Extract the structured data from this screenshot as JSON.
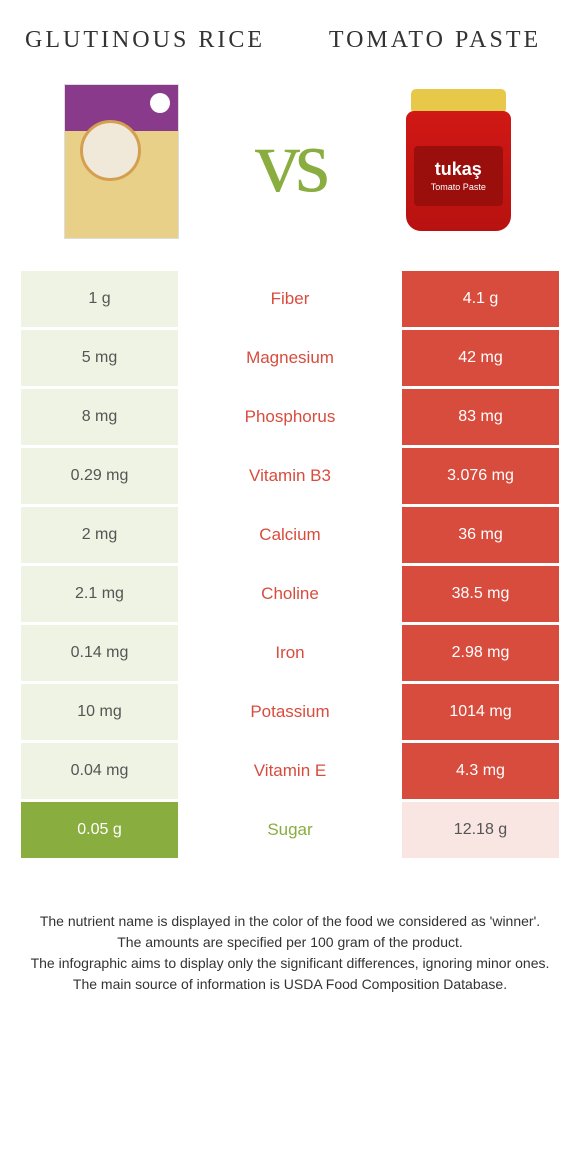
{
  "colors": {
    "left": "#8aad3f",
    "right": "#d84c3e",
    "leftLight": "#eff3e3",
    "rightLight": "#f9e6e3",
    "textGreen": "#8aad3f",
    "textRed": "#d84c3e"
  },
  "header": {
    "leftTitle": "Glutinous rice",
    "rightTitle": "Tomato paste",
    "vs": "vs"
  },
  "jarBrand": "tukaş",
  "jarProduct": "Tomato Paste",
  "rows": [
    {
      "label": "Fiber",
      "left": "1 g",
      "right": "4.1 g",
      "winner": "right"
    },
    {
      "label": "Magnesium",
      "left": "5 mg",
      "right": "42 mg",
      "winner": "right"
    },
    {
      "label": "Phosphorus",
      "left": "8 mg",
      "right": "83 mg",
      "winner": "right"
    },
    {
      "label": "Vitamin B3",
      "left": "0.29 mg",
      "right": "3.076 mg",
      "winner": "right"
    },
    {
      "label": "Calcium",
      "left": "2 mg",
      "right": "36 mg",
      "winner": "right"
    },
    {
      "label": "Choline",
      "left": "2.1 mg",
      "right": "38.5 mg",
      "winner": "right"
    },
    {
      "label": "Iron",
      "left": "0.14 mg",
      "right": "2.98 mg",
      "winner": "right"
    },
    {
      "label": "Potassium",
      "left": "10 mg",
      "right": "1014 mg",
      "winner": "right"
    },
    {
      "label": "Vitamin E",
      "left": "0.04 mg",
      "right": "4.3 mg",
      "winner": "right"
    },
    {
      "label": "Sugar",
      "left": "0.05 g",
      "right": "12.18 g",
      "winner": "left"
    }
  ],
  "footer": [
    "The nutrient name is displayed in the color of the food we considered as 'winner'.",
    "The amounts are specified per 100 gram of the product.",
    "The infographic aims to display only the significant differences, ignoring minor ones.",
    "The main source of information is USDA Food Composition Database."
  ]
}
